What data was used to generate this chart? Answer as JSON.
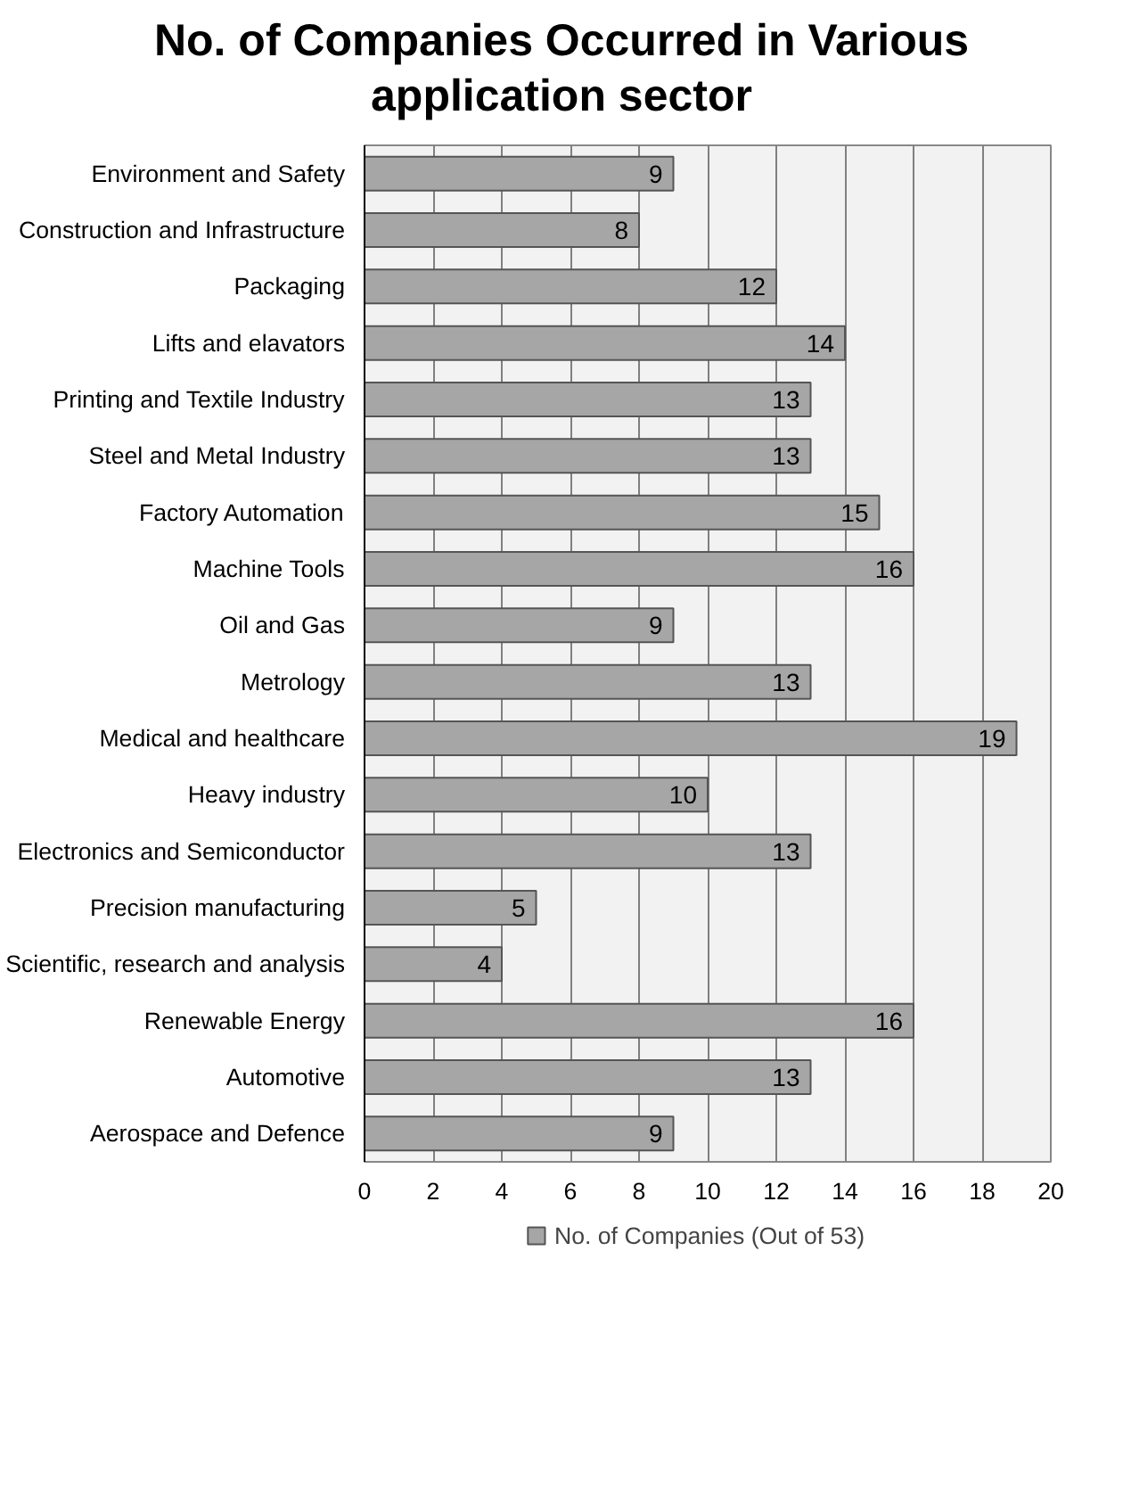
{
  "chart_data": {
    "type": "bar",
    "orientation": "horizontal",
    "title": "No. of Companies Occurred in Various application sector",
    "categories": [
      "Environment and Safety",
      "Construction and Infrastructure",
      "Packaging",
      "Lifts and elavators",
      "Printing and Textile Industry",
      "Steel and Metal Industry",
      "Factory Automation",
      "Machine Tools",
      "Oil and Gas",
      "Metrology",
      "Medical and healthcare",
      "Heavy industry",
      "Electronics and Semiconductor",
      "Precision manufacturing",
      "Scientific, research and analysis",
      "Renewable Energy",
      "Automotive",
      "Aerospace and Defence"
    ],
    "series": [
      {
        "name": "No. of Companies (Out of 53)",
        "color": "#a6a6a6",
        "values": [
          9,
          8,
          12,
          14,
          13,
          13,
          15,
          16,
          9,
          13,
          19,
          10,
          13,
          5,
          4,
          16,
          13,
          9
        ]
      }
    ],
    "xlim": [
      0,
      20
    ],
    "xticks": [
      0,
      2,
      4,
      6,
      8,
      10,
      12,
      14,
      16,
      18,
      20
    ],
    "grid": "x",
    "legend": "bottom",
    "data_labels": true
  }
}
